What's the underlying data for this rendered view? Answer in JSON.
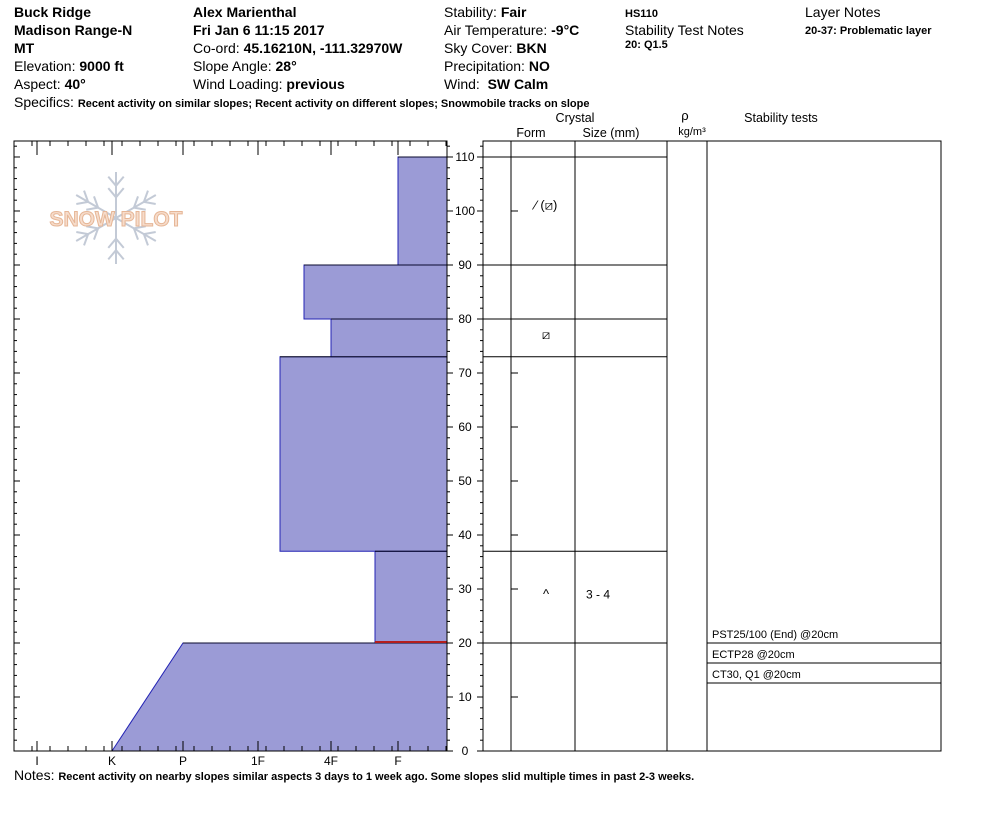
{
  "header": {
    "col1": [
      "Buck Ridge",
      "Madison Range-N",
      "MT"
    ],
    "elevation": {
      "label": "Elevation:",
      "value": "9000 ft"
    },
    "aspect": {
      "label": "Aspect:",
      "value": "40°"
    },
    "observer": "Alex Marienthal",
    "datetime": "Fri Jan 6 11:15 2017",
    "coord": {
      "label": "Co-ord:",
      "value": "45.16210N, -111.32970W"
    },
    "slope_angle": {
      "label": "Slope Angle:",
      "value": "28°"
    },
    "wind_loading": {
      "label": "Wind Loading:",
      "value": "previous"
    },
    "stability": {
      "label": "Stability:",
      "value": "Fair"
    },
    "air_temp": {
      "label": "Air Temperature:",
      "value": "-9°C"
    },
    "sky_cover": {
      "label": "Sky Cover:",
      "value": "BKN"
    },
    "precipitation": {
      "label": "Precipitation:",
      "value": "NO"
    },
    "wind": {
      "label": "Wind:",
      "value": "SW Calm"
    },
    "hs": "HS110",
    "stability_test_notes_title": "Stability Test Notes",
    "stability_test_notes": "20: Q1.5",
    "layer_notes_title": "Layer Notes",
    "layer_notes": "20-37: Problematic layer",
    "specifics": {
      "label": "Specifics:",
      "value": "Recent activity on similar slopes; Recent activity on different slopes; Snowmobile tracks on slope"
    }
  },
  "notes": {
    "label": "Notes:",
    "value": "Recent activity on nearby slopes similar aspects 3 days to 1 week ago. Some slopes slid multiple times in past 2-3 weeks."
  },
  "logo_text": "SNOW PILOT",
  "table_headers": {
    "crystal": "Crystal",
    "form": "Form",
    "size": "Size (mm)",
    "rho": "ρ",
    "density": "kg/m³",
    "stability_tests": "Stability tests"
  },
  "crystals": [
    {
      "height": 101,
      "form": "⁄ (⧄)",
      "size": ""
    },
    {
      "height": 77,
      "form": "⧄",
      "size": ""
    },
    {
      "height": 29,
      "form": "^",
      "size": "3 - 4"
    }
  ],
  "stability_tests": [
    "PST25/100 (End) @20cm",
    "ECTP28 @20cm",
    "CT30, Q1 @20cm"
  ],
  "colors": {
    "layer_fill": "#9b9bd6",
    "layer_edge": "#2323b4",
    "weak_layer": "#b41e1e"
  },
  "chart_data": {
    "type": "snow-profile",
    "y_axis": {
      "min": 0,
      "max": 110,
      "ticks": [
        0,
        10,
        20,
        30,
        40,
        50,
        60,
        70,
        80,
        90,
        100,
        110
      ],
      "unit": "cm"
    },
    "hardness_scale": [
      "I",
      "K",
      "P",
      "1F",
      "4F",
      "F"
    ],
    "layers": [
      {
        "bottom": 0,
        "top": 20,
        "hardness_bottom": "K",
        "hardness_top": "P"
      },
      {
        "bottom": 20,
        "top": 37,
        "hardness": "F+"
      },
      {
        "bottom": 37,
        "top": 73,
        "hardness": "4F-"
      },
      {
        "bottom": 73,
        "top": 80,
        "hardness": "4F"
      },
      {
        "bottom": 80,
        "top": 90,
        "hardness": "4F+"
      },
      {
        "bottom": 90,
        "top": 110,
        "hardness": "F"
      }
    ],
    "layer_boundaries": [
      20,
      37,
      73,
      80,
      90,
      110
    ],
    "weak_layer": 20,
    "grid": false
  }
}
